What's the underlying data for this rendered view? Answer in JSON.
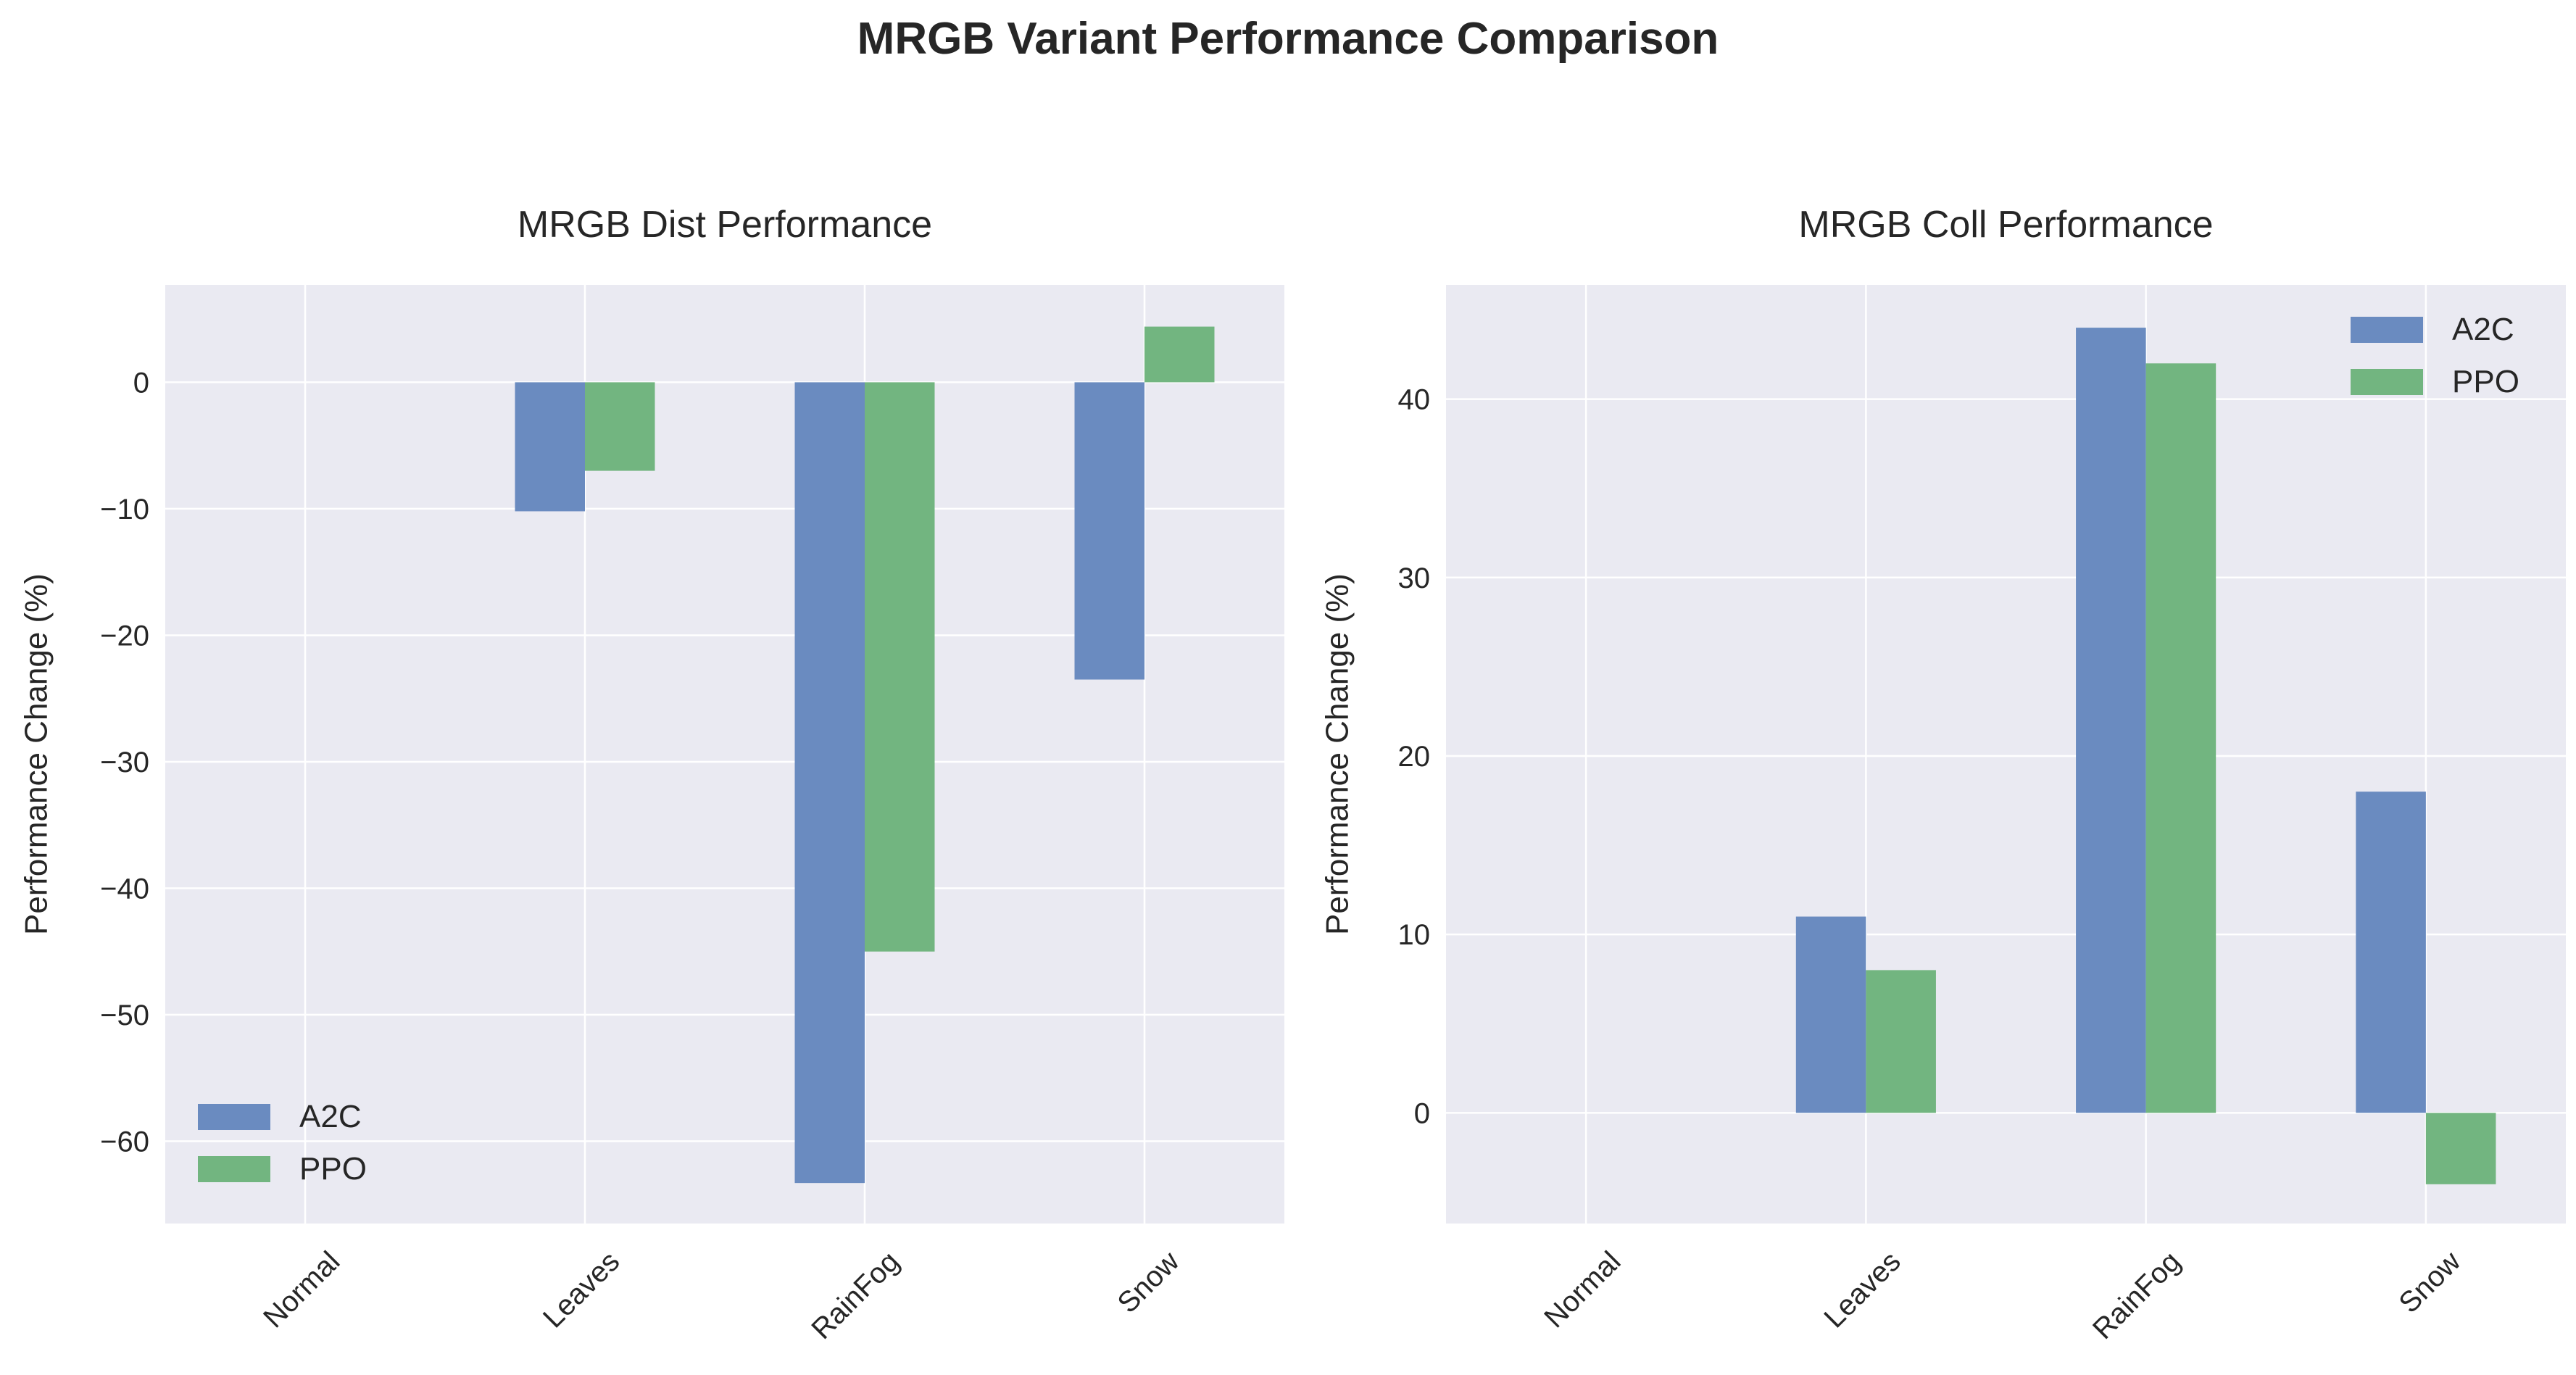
{
  "figure_title": "MRGB Variant Performance Comparison",
  "colors": {
    "A2C": "#6a8bc0",
    "PPO": "#72b580",
    "plot_bg": "#eaeaf2",
    "grid": "#ffffff"
  },
  "chart_data": [
    {
      "type": "bar",
      "title": "MRGB Dist Performance",
      "xlabel": "",
      "ylabel": "Performance Change (%)",
      "categories": [
        "Normal",
        "Leaves",
        "RainFog",
        "Snow"
      ],
      "series": [
        {
          "name": "A2C",
          "values": [
            0,
            -10.2,
            -63.3,
            -23.5
          ]
        },
        {
          "name": "PPO",
          "values": [
            0,
            -7.0,
            -45.0,
            4.4
          ]
        }
      ],
      "ylim": [
        -66.5,
        7.7
      ],
      "yticks": [
        0,
        -10,
        -20,
        -30,
        -40,
        -50,
        -60
      ],
      "grid": true,
      "legend_position": "lower-left"
    },
    {
      "type": "bar",
      "title": "MRGB Coll Performance",
      "xlabel": "",
      "ylabel": "Performance Change (%)",
      "categories": [
        "Normal",
        "Leaves",
        "RainFog",
        "Snow"
      ],
      "series": [
        {
          "name": "A2C",
          "values": [
            0,
            11,
            44,
            18
          ]
        },
        {
          "name": "PPO",
          "values": [
            0,
            8,
            42,
            -4
          ]
        }
      ],
      "ylim": [
        -6.2,
        46.4
      ],
      "yticks": [
        0,
        10,
        20,
        30,
        40
      ],
      "grid": true,
      "legend_position": "upper-right"
    }
  ]
}
